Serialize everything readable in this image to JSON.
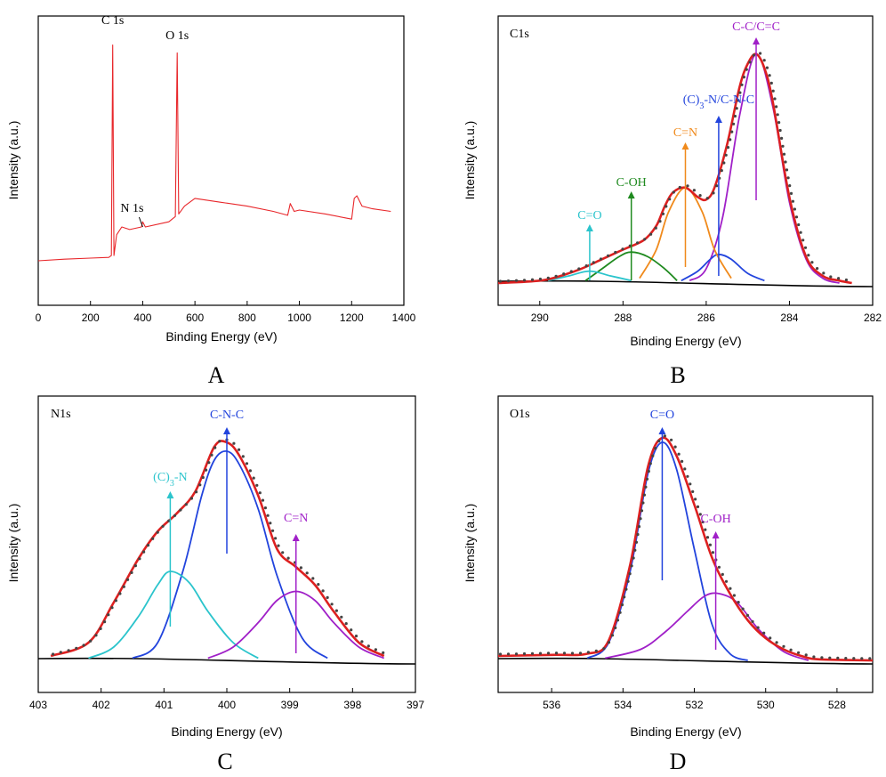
{
  "chart_data": [
    {
      "panel": "A",
      "type": "line",
      "xlabel": "Binding Energy (eV)",
      "ylabel": "Intensity (a.u.)",
      "xlim": [
        0,
        1400
      ],
      "ylim": [
        0,
        100
      ],
      "xticks": [
        0,
        200,
        400,
        600,
        800,
        1000,
        1200,
        1400
      ],
      "annotations": [
        {
          "text": "C 1s",
          "x": 285,
          "y": 94
        },
        {
          "text": "O 1s",
          "x": 532,
          "y": 89
        },
        {
          "text": "N 1s",
          "x": 400,
          "y": 28
        }
      ],
      "series": [
        {
          "color": "#e8262a",
          "x": [
            0,
            100,
            200,
            270,
            280,
            285,
            290,
            300,
            320,
            350,
            395,
            400,
            410,
            500,
            525,
            532,
            538,
            560,
            600,
            700,
            800,
            900,
            955,
            965,
            980,
            1000,
            1100,
            1200,
            1210,
            1220,
            1240,
            1280,
            1350
          ],
          "y": [
            12,
            12.6,
            13,
            13.3,
            14,
            95,
            14,
            22,
            25,
            24,
            25,
            27,
            25,
            27,
            29,
            92,
            30,
            33,
            36,
            34.5,
            33,
            31,
            29.5,
            34,
            31,
            31.5,
            30,
            28,
            36,
            37,
            33,
            32,
            31
          ]
        }
      ]
    },
    {
      "panel": "B",
      "type": "line",
      "title": "C1s",
      "xlabel": "Binding Energy (eV)",
      "ylabel": "Intensity (a.u.)",
      "xlim": [
        291,
        282
      ],
      "ylim": [
        0,
        100
      ],
      "xticks": [
        290,
        288,
        286,
        284,
        282
      ],
      "annotations": [
        {
          "text": "C=O",
          "x": 288.8,
          "color": "#2bc4cc"
        },
        {
          "text": "C-OH",
          "x": 287.8,
          "color": "#1f8a1f"
        },
        {
          "text": "C=N",
          "x": 286.5,
          "color": "#f08a1c"
        },
        {
          "text": "(C)3-N/C-N-C",
          "x": 285.7,
          "color": "#2244dd"
        },
        {
          "text": "C-C/C=C",
          "x": 284.8,
          "color": "#a020c8"
        }
      ],
      "series": [
        {
          "name": "C-C/C=C",
          "color": "#a020c8",
          "x": [
            286.4,
            286.0,
            285.6,
            285.2,
            284.8,
            284.4,
            284.0,
            283.6,
            283.2,
            282.8
          ],
          "y": [
            1,
            6,
            28,
            70,
            96,
            74,
            34,
            10,
            2,
            0
          ]
        },
        {
          "name": "(C)3-N/C-N-C",
          "color": "#2244dd",
          "x": [
            286.6,
            286.2,
            285.9,
            285.7,
            285.4,
            285.0,
            284.6
          ],
          "y": [
            1,
            5,
            10,
            12,
            10,
            4,
            1
          ]
        },
        {
          "name": "C=N",
          "color": "#f08a1c",
          "x": [
            287.6,
            287.2,
            286.9,
            286.5,
            286.1,
            285.8,
            285.4
          ],
          "y": [
            2,
            14,
            30,
            40,
            30,
            14,
            2
          ]
        },
        {
          "name": "C-OH",
          "color": "#1f8a1f",
          "x": [
            288.9,
            288.5,
            288.1,
            287.8,
            287.4,
            287.0,
            286.7
          ],
          "y": [
            1,
            6,
            11,
            13,
            11,
            6,
            1
          ]
        },
        {
          "name": "C=O",
          "color": "#2bc4cc",
          "x": [
            289.8,
            289.3,
            288.8,
            288.3,
            287.8
          ],
          "y": [
            1,
            3,
            5,
            3,
            1
          ]
        },
        {
          "name": "Fit",
          "color": "#dd2020",
          "x": [
            291,
            290,
            289.5,
            289,
            288.5,
            288,
            287.5,
            287.2,
            287,
            286.8,
            286.5,
            286.2,
            286.0,
            285.8,
            285.5,
            285.2,
            285.0,
            284.8,
            284.6,
            284.4,
            284.0,
            283.6,
            283.2,
            282.8,
            282.5
          ],
          "y": [
            0,
            1,
            3,
            6,
            10,
            14,
            18,
            24,
            32,
            38,
            40,
            36,
            35,
            40,
            58,
            82,
            92,
            96,
            90,
            76,
            36,
            11,
            3,
            1,
            0
          ]
        }
      ]
    },
    {
      "panel": "C",
      "type": "line",
      "title": "N1s",
      "xlabel": "Binding Energy (eV)",
      "ylabel": "Intensity (a.u.)",
      "xlim": [
        403,
        397
      ],
      "ylim": [
        0,
        100
      ],
      "xticks": [
        403,
        402,
        401,
        400,
        399,
        398,
        397
      ],
      "annotations": [
        {
          "text": "(C)3-N",
          "x": 400.9,
          "color": "#2bc4cc"
        },
        {
          "text": "C-N-C",
          "x": 400.0,
          "color": "#2244dd"
        },
        {
          "text": "C=N",
          "x": 398.9,
          "color": "#a020c8"
        }
      ],
      "series": [
        {
          "name": "C-N-C",
          "color": "#2244dd",
          "x": [
            401.5,
            401.1,
            400.7,
            400.4,
            400.2,
            400.0,
            399.8,
            399.5,
            399.2,
            398.8,
            398.4
          ],
          "y": [
            1,
            8,
            40,
            74,
            90,
            94,
            88,
            68,
            38,
            10,
            1
          ]
        },
        {
          "name": "(C)3-N",
          "color": "#2bc4cc",
          "x": [
            402.2,
            401.8,
            401.4,
            401.1,
            400.9,
            400.6,
            400.3,
            399.9,
            399.5
          ],
          "y": [
            1,
            6,
            20,
            34,
            40,
            35,
            22,
            8,
            1
          ]
        },
        {
          "name": "C=N",
          "color": "#a020c8",
          "x": [
            400.3,
            399.9,
            399.5,
            399.2,
            398.9,
            398.6,
            398.3,
            397.9,
            397.5
          ],
          "y": [
            1,
            6,
            17,
            27,
            31,
            27,
            17,
            6,
            1
          ]
        },
        {
          "name": "Fit",
          "color": "#dd2020",
          "x": [
            402.8,
            402.2,
            401.8,
            401.4,
            401.1,
            400.8,
            400.5,
            400.2,
            400.0,
            399.8,
            399.5,
            399.2,
            398.9,
            398.6,
            398.3,
            397.9,
            397.5
          ],
          "y": [
            2,
            8,
            26,
            46,
            58,
            66,
            76,
            96,
            98,
            92,
            74,
            50,
            42,
            34,
            22,
            8,
            2
          ]
        }
      ]
    },
    {
      "panel": "D",
      "type": "line",
      "title": "O1s",
      "xlabel": "Binding Energy (eV)",
      "ylabel": "Intensity (a.u.)",
      "xlim": [
        537.5,
        527
      ],
      "ylim": [
        0,
        100
      ],
      "xticks": [
        536,
        534,
        532,
        530,
        528
      ],
      "annotations": [
        {
          "text": "C=O",
          "x": 532.9,
          "color": "#2244dd"
        },
        {
          "text": "C-OH",
          "x": 531.4,
          "color": "#a020c8"
        }
      ],
      "series": [
        {
          "name": "C=O",
          "color": "#2244dd",
          "x": [
            535.0,
            534.4,
            533.8,
            533.3,
            532.9,
            532.5,
            532.0,
            531.5,
            531.0,
            530.5
          ],
          "y": [
            1,
            8,
            40,
            84,
            98,
            86,
            50,
            16,
            3,
            0
          ]
        },
        {
          "name": "C-OH",
          "color": "#a020c8",
          "x": [
            534.5,
            533.5,
            532.8,
            532.2,
            531.7,
            531.3,
            530.8,
            530.2,
            529.5,
            528.8
          ],
          "y": [
            1,
            5,
            13,
            22,
            29,
            30,
            26,
            14,
            4,
            0
          ]
        },
        {
          "name": "Fit",
          "color": "#dd2020",
          "x": [
            537.5,
            536,
            535,
            534.4,
            533.8,
            533.3,
            532.9,
            532.5,
            532.0,
            531.5,
            531.0,
            530.5,
            530.0,
            529.5,
            529.0,
            528.5,
            527
          ],
          "y": [
            2,
            2.5,
            3,
            9,
            43,
            87,
            100,
            92,
            70,
            46,
            30,
            18,
            10,
            5,
            2,
            0.5,
            0
          ]
        }
      ]
    }
  ],
  "panel_labels": {
    "a": "A",
    "b": "B",
    "c": "C",
    "d": "D"
  },
  "panel_titles": {
    "b": "C1s",
    "c": "N1s",
    "d": "O1s"
  },
  "axis_titles": {
    "x": "Binding Energy (eV)",
    "y": "Intensity (a.u.)"
  },
  "colors": {
    "fit": "#dd2020",
    "survey": "#e8262a",
    "baseline": "#000000",
    "dots": "#444444"
  }
}
